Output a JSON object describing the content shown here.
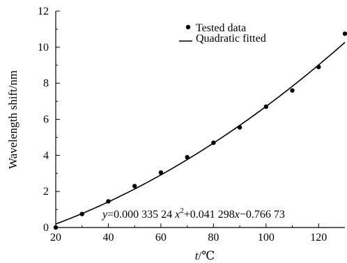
{
  "chart_data": {
    "type": "scatter",
    "xlabel_italic": "t",
    "xlabel_rest": "/℃",
    "ylabel": "Wavelength shift/nm",
    "xlim": [
      20,
      130
    ],
    "ylim": [
      0,
      12
    ],
    "xticks": [
      20,
      40,
      60,
      80,
      100,
      120
    ],
    "yticks": [
      0,
      2,
      4,
      6,
      8,
      10,
      12
    ],
    "grid": false,
    "legend_position": "top-right",
    "series": [
      {
        "name": "Tested data",
        "marker": "dot",
        "x": [
          20,
          30,
          40,
          50,
          60,
          70,
          80,
          90,
          100,
          110,
          120,
          130
        ],
        "y": [
          0.0,
          0.75,
          1.45,
          2.3,
          3.05,
          3.9,
          4.7,
          5.55,
          6.7,
          7.6,
          8.9,
          10.75
        ]
      },
      {
        "name": "Quadratic fitted",
        "marker": "line",
        "coefficients": {
          "a": 0.00033524,
          "b": 0.041298,
          "c": -0.76673
        },
        "x_range": [
          20,
          130
        ]
      }
    ],
    "equation": {
      "y": "y",
      "eq1": "=0.000 335 24",
      "x1": "x",
      "sup": "2",
      "eq2": "+0.041 298",
      "x2": "x",
      "eq3": "−0.766 73"
    },
    "colors": {
      "marks": "#000000",
      "background": "#ffffff"
    }
  }
}
